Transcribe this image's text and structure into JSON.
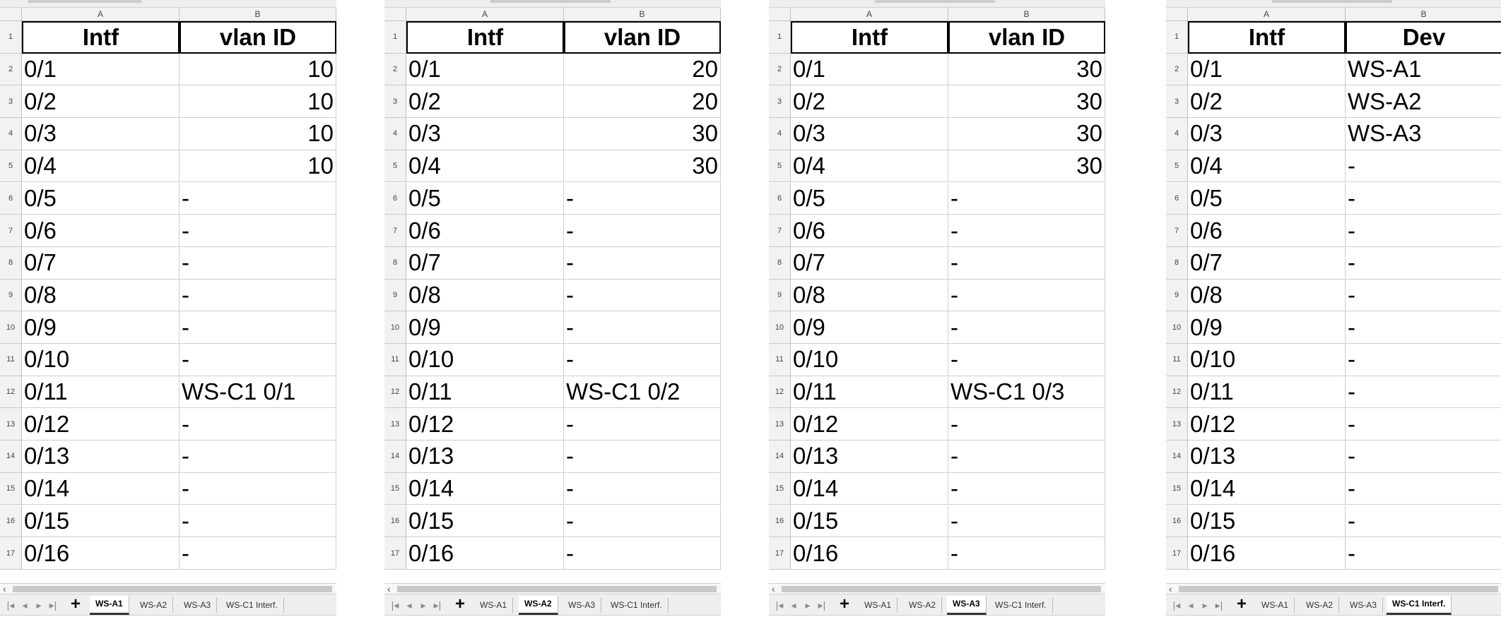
{
  "columns": [
    "A",
    "B"
  ],
  "row_numbers": [
    "1",
    "2",
    "3",
    "4",
    "5",
    "6",
    "7",
    "8",
    "9",
    "10",
    "11",
    "12",
    "13",
    "14",
    "15",
    "16",
    "17"
  ],
  "tab_names": [
    "WS-A1",
    "WS-A2",
    "WS-A3",
    "WS-C1 Interf."
  ],
  "nav_icons": [
    "first-sheet-icon",
    "prev-sheet-icon",
    "next-sheet-icon",
    "last-sheet-icon",
    "add-sheet-icon"
  ],
  "sheets": [
    {
      "active_tab": "WS-A1",
      "headers": [
        "Intf",
        "vlan ID"
      ],
      "rows": [
        [
          "0/1",
          "10"
        ],
        [
          "0/2",
          "10"
        ],
        [
          "0/3",
          "10"
        ],
        [
          "0/4",
          "10"
        ],
        [
          "0/5",
          "-"
        ],
        [
          "0/6",
          "-"
        ],
        [
          "0/7",
          "-"
        ],
        [
          "0/8",
          "-"
        ],
        [
          "0/9",
          "-"
        ],
        [
          "0/10",
          "-"
        ],
        [
          "0/11",
          "WS-C1 0/1"
        ],
        [
          "0/12",
          "-"
        ],
        [
          "0/13",
          "-"
        ],
        [
          "0/14",
          "-"
        ],
        [
          "0/15",
          "-"
        ],
        [
          "0/16",
          "-"
        ]
      ]
    },
    {
      "active_tab": "WS-A2",
      "headers": [
        "Intf",
        "vlan ID"
      ],
      "rows": [
        [
          "0/1",
          "20"
        ],
        [
          "0/2",
          "20"
        ],
        [
          "0/3",
          "30"
        ],
        [
          "0/4",
          "30"
        ],
        [
          "0/5",
          "-"
        ],
        [
          "0/6",
          "-"
        ],
        [
          "0/7",
          "-"
        ],
        [
          "0/8",
          "-"
        ],
        [
          "0/9",
          "-"
        ],
        [
          "0/10",
          "-"
        ],
        [
          "0/11",
          "WS-C1 0/2"
        ],
        [
          "0/12",
          "-"
        ],
        [
          "0/13",
          "-"
        ],
        [
          "0/14",
          "-"
        ],
        [
          "0/15",
          "-"
        ],
        [
          "0/16",
          "-"
        ]
      ]
    },
    {
      "active_tab": "WS-A3",
      "headers": [
        "Intf",
        "vlan ID"
      ],
      "rows": [
        [
          "0/1",
          "30"
        ],
        [
          "0/2",
          "30"
        ],
        [
          "0/3",
          "30"
        ],
        [
          "0/4",
          "30"
        ],
        [
          "0/5",
          "-"
        ],
        [
          "0/6",
          "-"
        ],
        [
          "0/7",
          "-"
        ],
        [
          "0/8",
          "-"
        ],
        [
          "0/9",
          "-"
        ],
        [
          "0/10",
          "-"
        ],
        [
          "0/11",
          "WS-C1 0/3"
        ],
        [
          "0/12",
          "-"
        ],
        [
          "0/13",
          "-"
        ],
        [
          "0/14",
          "-"
        ],
        [
          "0/15",
          "-"
        ],
        [
          "0/16",
          "-"
        ]
      ]
    },
    {
      "active_tab": "WS-C1 Interf.",
      "headers": [
        "Intf",
        "Dev"
      ],
      "rows": [
        [
          "0/1",
          "WS-A1"
        ],
        [
          "0/2",
          "WS-A2"
        ],
        [
          "0/3",
          "WS-A3"
        ],
        [
          "0/4",
          "-"
        ],
        [
          "0/5",
          "-"
        ],
        [
          "0/6",
          "-"
        ],
        [
          "0/7",
          "-"
        ],
        [
          "0/8",
          "-"
        ],
        [
          "0/9",
          "-"
        ],
        [
          "0/10",
          "-"
        ],
        [
          "0/11",
          "-"
        ],
        [
          "0/12",
          "-"
        ],
        [
          "0/13",
          "-"
        ],
        [
          "0/14",
          "-"
        ],
        [
          "0/15",
          "-"
        ],
        [
          "0/16",
          "-"
        ]
      ]
    }
  ]
}
